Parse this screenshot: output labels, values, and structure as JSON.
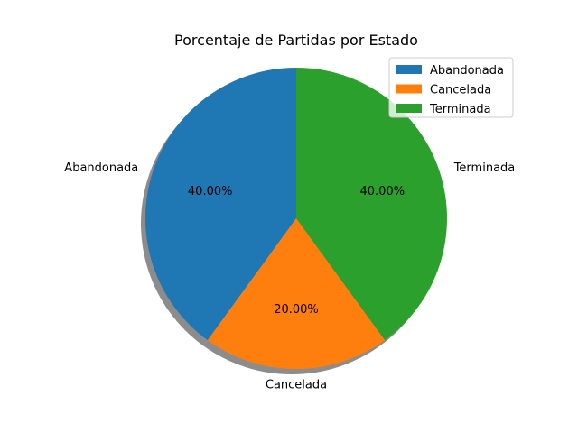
{
  "chart_data": {
    "type": "pie",
    "title": "Porcentaje de Partidas por Estado",
    "categories": [
      "Abandonada",
      "Cancelada",
      "Terminada"
    ],
    "values": [
      40.0,
      20.0,
      40.0
    ],
    "value_labels": [
      "40.00%",
      "20.00%",
      "40.00%"
    ],
    "colors": [
      "#1f77b4",
      "#ff7f0e",
      "#2ca02c"
    ],
    "shadow": true,
    "start_angle_deg": 90,
    "direction": "counterclockwise",
    "legend": {
      "placement": "upper-right",
      "entries": [
        "Abandonada",
        "Cancelada",
        "Terminada"
      ]
    }
  }
}
